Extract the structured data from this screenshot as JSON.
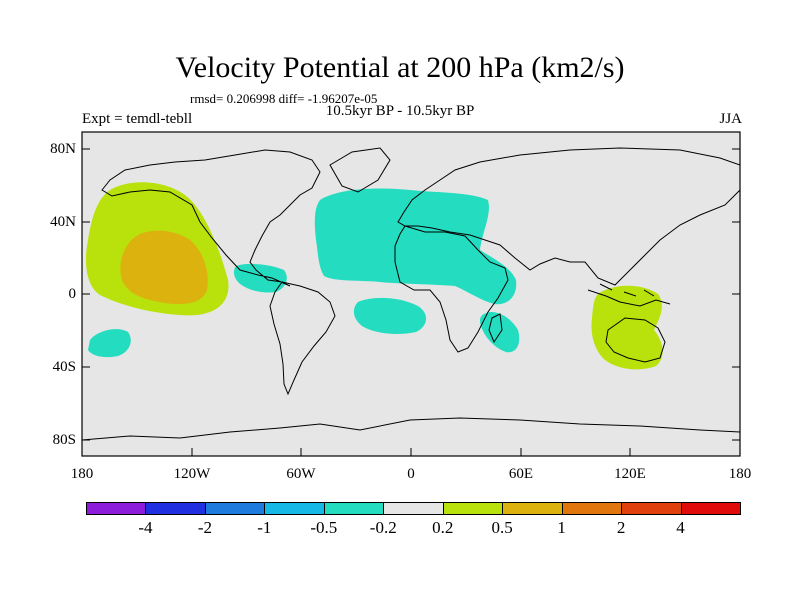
{
  "title": "Velocity Potential at 200 hPa (km2/s)",
  "stats_line": "rmsd= 0.206998 diff= -1.96207e-05",
  "experiment": "Expt = temdl-tebll",
  "period": "10.5kyr BP - 10.5kyr BP",
  "season": "JJA",
  "y_ticks": [
    "80N",
    "40N",
    "0",
    "40S",
    "80S"
  ],
  "x_ticks": [
    "180",
    "120W",
    "60W",
    "0",
    "60E",
    "120E",
    "180"
  ],
  "colorbar": {
    "labels": [
      "-4",
      "-2",
      "-1",
      "-0.5",
      "-0.2",
      "0.2",
      "0.5",
      "1",
      "2",
      "4"
    ],
    "colors": [
      "#8d1dda",
      "#2030e0",
      "#1c7bdc",
      "#16b9e6",
      "#24dcc0",
      "#e6e6e6",
      "#b9e20c",
      "#dcb20e",
      "#e0760c",
      "#e0400e",
      "#e00c0c"
    ]
  },
  "ocean_color": "#e6e6e6"
}
